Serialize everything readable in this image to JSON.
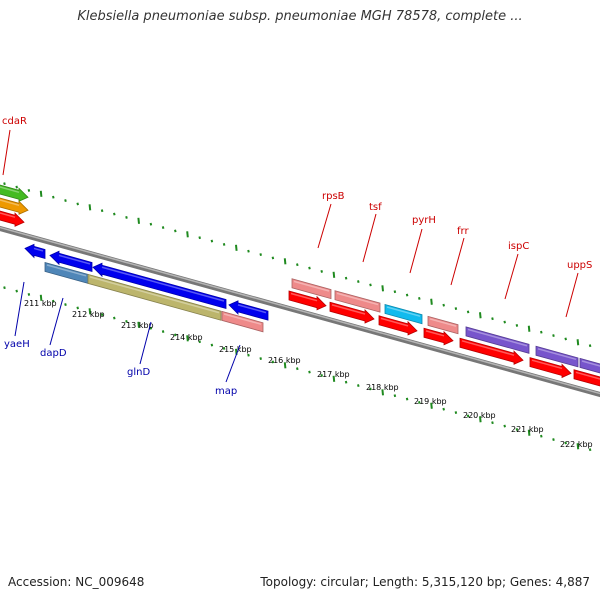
{
  "title": "Klebsiella pneumoniae subsp. pneumoniae MGH 78578, complete ...",
  "accession": "Accession: NC_009648",
  "summary": "Topology: circular; Length: 5,315,120 bp; Genes: 4,887",
  "colors": {
    "backbone": "#888888",
    "ticks": "#1f8a1f",
    "kbp_label": "#000000",
    "top_gene_label": "#cc0000",
    "bottom_gene_label": "#0000aa",
    "leader_top": "#cc0000",
    "leader_bottom": "#0000aa"
  },
  "kbp_labels": [
    "211 kbp",
    "212 kbp",
    "213 kbp",
    "214 kbp",
    "215 kbp",
    "216 kbp",
    "217 kbp",
    "218 kbp",
    "219 kbp",
    "220 kbp",
    "221 kbp",
    "222 kbp"
  ],
  "top_gene_labels": [
    "cdaR",
    "rpsB",
    "tsf",
    "pyrH",
    "frr",
    "ispC",
    "uppS"
  ],
  "bottom_gene_labels": [
    "yaeH",
    "dapD",
    "glnD",
    "map"
  ],
  "genes": [
    {
      "track": -3,
      "s": -30,
      "e": 28,
      "dir": 1,
      "color": "#44bb22"
    },
    {
      "track": -2,
      "s": -30,
      "e": 28,
      "dir": 1,
      "color": "#ee9900"
    },
    {
      "track": -1,
      "s": -30,
      "e": 24,
      "dir": 1,
      "color": "#ff0000"
    },
    {
      "track": 1,
      "s": 25,
      "e": 45,
      "dir": -1,
      "color": "#0000ee"
    },
    {
      "track": 1,
      "s": 50,
      "e": 92,
      "dir": -1,
      "color": "#0000ee"
    },
    {
      "track": 1,
      "s": 93,
      "e": 226,
      "dir": -1,
      "color": "#0000ee"
    },
    {
      "track": 1,
      "s": 229,
      "e": 268,
      "dir": -1,
      "color": "#0000ee"
    },
    {
      "track": 2,
      "s": 45,
      "e": 88,
      "dir": 0,
      "color": "#4f86b8"
    },
    {
      "track": 2,
      "s": 88,
      "e": 221,
      "dir": 0,
      "color": "#bcb56c"
    },
    {
      "track": 2,
      "s": 222,
      "e": 263,
      "dir": 0,
      "color": "#ee8a8a"
    },
    {
      "track": -2,
      "s": 292,
      "e": 331,
      "dir": 0,
      "color": "#ee8a8a"
    },
    {
      "track": -2,
      "s": 335,
      "e": 380,
      "dir": 0,
      "color": "#ee8a8a"
    },
    {
      "track": -2,
      "s": 385,
      "e": 422,
      "dir": 0,
      "color": "#11bbee"
    },
    {
      "track": -2,
      "s": 428,
      "e": 458,
      "dir": 0,
      "color": "#ee8a8a"
    },
    {
      "track": -2,
      "s": 466,
      "e": 529,
      "dir": 0,
      "color": "#7755cc"
    },
    {
      "track": -2,
      "s": 536,
      "e": 578,
      "dir": 0,
      "color": "#7755cc"
    },
    {
      "track": -2,
      "s": 580,
      "e": 620,
      "dir": 0,
      "color": "#7755cc"
    },
    {
      "track": -1,
      "s": 289,
      "e": 326,
      "dir": 1,
      "color": "#ff0000"
    },
    {
      "track": -1,
      "s": 330,
      "e": 374,
      "dir": 1,
      "color": "#ff0000"
    },
    {
      "track": -1,
      "s": 379,
      "e": 417,
      "dir": 1,
      "color": "#ff0000"
    },
    {
      "track": -1,
      "s": 424,
      "e": 453,
      "dir": 1,
      "color": "#ff0000"
    },
    {
      "track": -1,
      "s": 460,
      "e": 523,
      "dir": 1,
      "color": "#ff0000"
    },
    {
      "track": -1,
      "s": 530,
      "e": 571,
      "dir": 1,
      "color": "#ff0000"
    },
    {
      "track": -1,
      "s": 574,
      "e": 620,
      "dir": 1,
      "color": "#ff0000"
    }
  ]
}
